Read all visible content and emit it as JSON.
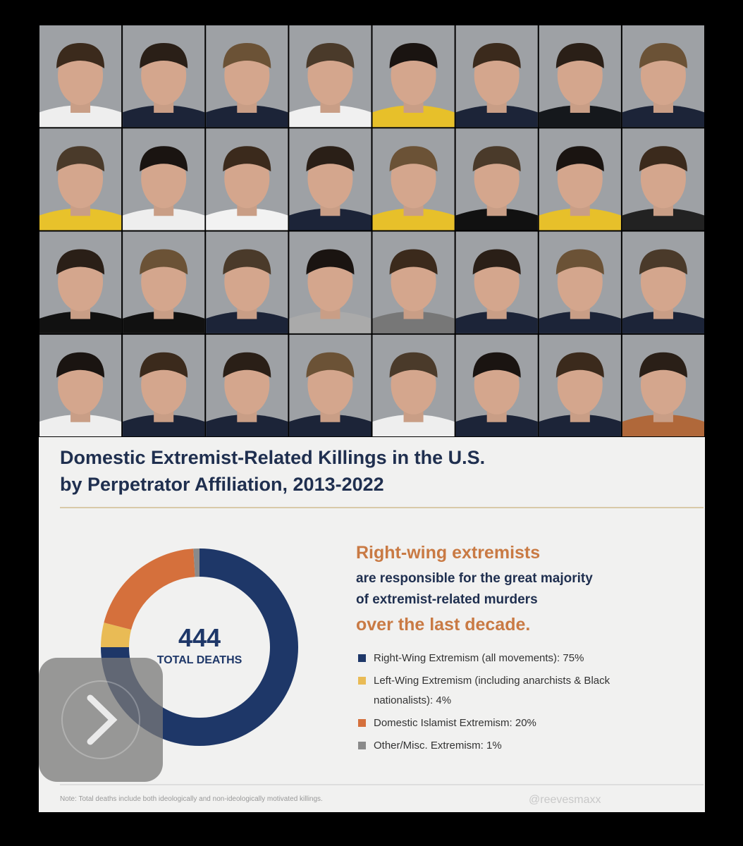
{
  "chart_data": {
    "type": "pie",
    "donut": true,
    "title": "Domestic Extremist-Related Killings in the U.S. by Perpetrator Affiliation, 2013-2022",
    "center_value": 444,
    "center_label": "TOTAL DEATHS",
    "callout": [
      "Right-wing extremists",
      "are responsible for the great majority",
      "of extremist-related murders",
      "over the last decade."
    ],
    "categories": [
      "Right-Wing Extremism (all movements): 75%",
      "Left-Wing Extremism (including anarchists & Black nationalists): 4%",
      "Domestic Islamist Extremism: 20%",
      "Other/Misc. Extremism: 1%"
    ],
    "values": [
      75,
      4,
      20,
      1
    ],
    "colors": [
      "#1e3768",
      "#e9bb55",
      "#d5703c",
      "#8a8a8a"
    ],
    "note": "Note: Total deaths include both ideologically and non-ideologically motivated killings.",
    "watermark": "@reevesmaxx"
  }
}
